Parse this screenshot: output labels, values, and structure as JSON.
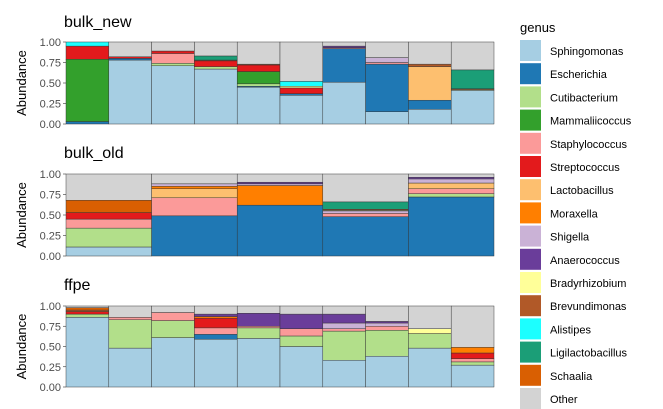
{
  "chart_data": {
    "type": "bar",
    "stacked": true,
    "ylabel": "Abundance",
    "yticks": [
      "0.00",
      "0.25",
      "0.50",
      "0.75",
      "1.00"
    ],
    "ylim": [
      0,
      1
    ],
    "legend": {
      "title": "genus",
      "placement": "right",
      "entries": [
        {
          "name": "Sphingomonas",
          "color": "#a6cee3"
        },
        {
          "name": "Escherichia",
          "color": "#1f78b4"
        },
        {
          "name": "Cutibacterium",
          "color": "#b2df8a"
        },
        {
          "name": "Mammaliicoccus",
          "color": "#33a02c"
        },
        {
          "name": "Staphylococcus",
          "color": "#fb9a99"
        },
        {
          "name": "Streptococcus",
          "color": "#e31a1c"
        },
        {
          "name": "Lactobacillus",
          "color": "#fdbf6f"
        },
        {
          "name": "Moraxella",
          "color": "#ff7f00"
        },
        {
          "name": "Shigella",
          "color": "#cab2d6"
        },
        {
          "name": "Anaerococcus",
          "color": "#6a3d9a"
        },
        {
          "name": "Bradyrhizobium",
          "color": "#ffff99"
        },
        {
          "name": "Brevundimonas",
          "color": "#b15928"
        },
        {
          "name": "Alistipes",
          "color": "#1cffff"
        },
        {
          "name": "Ligilactobacillus",
          "color": "#1b9e77"
        },
        {
          "name": "Schaalia",
          "color": "#d95f02"
        },
        {
          "name": "Other",
          "color": "#d3d3d3"
        }
      ]
    },
    "panels": [
      {
        "title": "bulk_new",
        "samples": [
          {
            "Mammaliicoccus": 0.76,
            "Streptococcus": 0.16,
            "Alistipes": 0.05,
            "Escherichia": 0.03
          },
          {
            "Sphingomonas": 0.78,
            "Escherichia": 0.02,
            "Streptococcus": 0.02,
            "Other": 0.18
          },
          {
            "Sphingomonas": 0.71,
            "Cutibacterium": 0.03,
            "Staphylococcus": 0.12,
            "Streptococcus": 0.03,
            "Other": 0.11
          },
          {
            "Sphingomonas": 0.67,
            "Cutibacterium": 0.03,
            "Streptococcus": 0.07,
            "Brevundimonas": 0.01,
            "Ligilactobacillus": 0.05,
            "Other": 0.17
          },
          {
            "Sphingomonas": 0.45,
            "Cutibacterium": 0.03,
            "Mammaliicoccus": 0.15,
            "Streptococcus": 0.08,
            "Escherichia": 0.01,
            "Brevundimonas": 0.01,
            "Other": 0.27
          },
          {
            "Sphingomonas": 0.35,
            "Escherichia": 0.02,
            "Streptococcus": 0.07,
            "Alistipes": 0.06,
            "Bradyrhizobium": 0.02,
            "Other": 0.48
          },
          {
            "Sphingomonas": 0.51,
            "Escherichia": 0.41,
            "Staphylococcus": 0.01,
            "Anaerococcus": 0.02,
            "Other": 0.05
          },
          {
            "Sphingomonas": 0.15,
            "Escherichia": 0.58,
            "Staphylococcus": 0.02,
            "Shigella": 0.06,
            "Other": 0.19
          },
          {
            "Sphingomonas": 0.18,
            "Escherichia": 0.11,
            "Lactobacillus": 0.41,
            "Brevundimonas": 0.03,
            "Other": 0.27
          },
          {
            "Sphingomonas": 0.41,
            "Brevundimonas": 0.01,
            "Bradyrhizobium": 0.01,
            "Ligilactobacillus": 0.23,
            "Other": 0.34
          }
        ]
      },
      {
        "title": "bulk_old",
        "samples": [
          {
            "Sphingomonas": 0.11,
            "Cutibacterium": 0.23,
            "Staphylococcus": 0.11,
            "Streptococcus": 0.08,
            "Schaalia": 0.15,
            "Other": 0.32
          },
          {
            "Escherichia": 0.49,
            "Staphylococcus": 0.22,
            "Lactobacillus": 0.11,
            "Moraxella": 0.03,
            "Shigella": 0.03,
            "Other": 0.12
          },
          {
            "Escherichia": 0.62,
            "Moraxella": 0.24,
            "Shigella": 0.02,
            "Anaerococcus": 0.02,
            "Other": 0.1
          },
          {
            "Escherichia": 0.48,
            "Shigella": 0.03,
            "Staphylococcus": 0.04,
            "Bradyrhizobium": 0.01,
            "Brevundimonas": 0.01,
            "Ligilactobacillus": 0.09,
            "Other": 0.34
          },
          {
            "Escherichia": 0.72,
            "Cutibacterium": 0.04,
            "Staphylococcus": 0.06,
            "Lactobacillus": 0.07,
            "Shigella": 0.05,
            "Anaerococcus": 0.02,
            "Other": 0.04
          }
        ]
      },
      {
        "title": "ffpe",
        "samples": [
          {
            "Sphingomonas": 0.86,
            "Cutibacterium": 0.04,
            "Streptococcus": 0.03,
            "Schaalia": 0.03,
            "Brevundimonas": 0.02,
            "Other": 0.02
          },
          {
            "Sphingomonas": 0.48,
            "Cutibacterium": 0.35,
            "Staphylococcus": 0.03,
            "Other": 0.14
          },
          {
            "Sphingomonas": 0.61,
            "Cutibacterium": 0.21,
            "Staphylococcus": 0.1,
            "Other": 0.08
          },
          {
            "Sphingomonas": 0.59,
            "Escherichia": 0.06,
            "Staphylococcus": 0.08,
            "Streptococcus": 0.12,
            "Anaerococcus": 0.03,
            "Moraxella": 0.02,
            "Other": 0.1
          },
          {
            "Sphingomonas": 0.6,
            "Cutibacterium": 0.13,
            "Staphylococcus": 0.02,
            "Anaerococcus": 0.16,
            "Other": 0.09
          },
          {
            "Sphingomonas": 0.5,
            "Cutibacterium": 0.13,
            "Staphylococcus": 0.09,
            "Anaerococcus": 0.18,
            "Other": 0.1
          },
          {
            "Sphingomonas": 0.33,
            "Cutibacterium": 0.36,
            "Staphylococcus": 0.03,
            "Anaerococcus": 0.11,
            "Shigella": 0.07,
            "Other": 0.1
          },
          {
            "Sphingomonas": 0.38,
            "Cutibacterium": 0.32,
            "Staphylococcus": 0.05,
            "Anaerococcus": 0.02,
            "Shigella": 0.04,
            "Other": 0.19
          },
          {
            "Sphingomonas": 0.48,
            "Cutibacterium": 0.18,
            "Bradyrhizobium": 0.06,
            "Other": 0.28
          },
          {
            "Sphingomonas": 0.27,
            "Cutibacterium": 0.04,
            "Staphylococcus": 0.04,
            "Streptococcus": 0.07,
            "Moraxella": 0.07,
            "Other": 0.51
          }
        ]
      }
    ]
  }
}
